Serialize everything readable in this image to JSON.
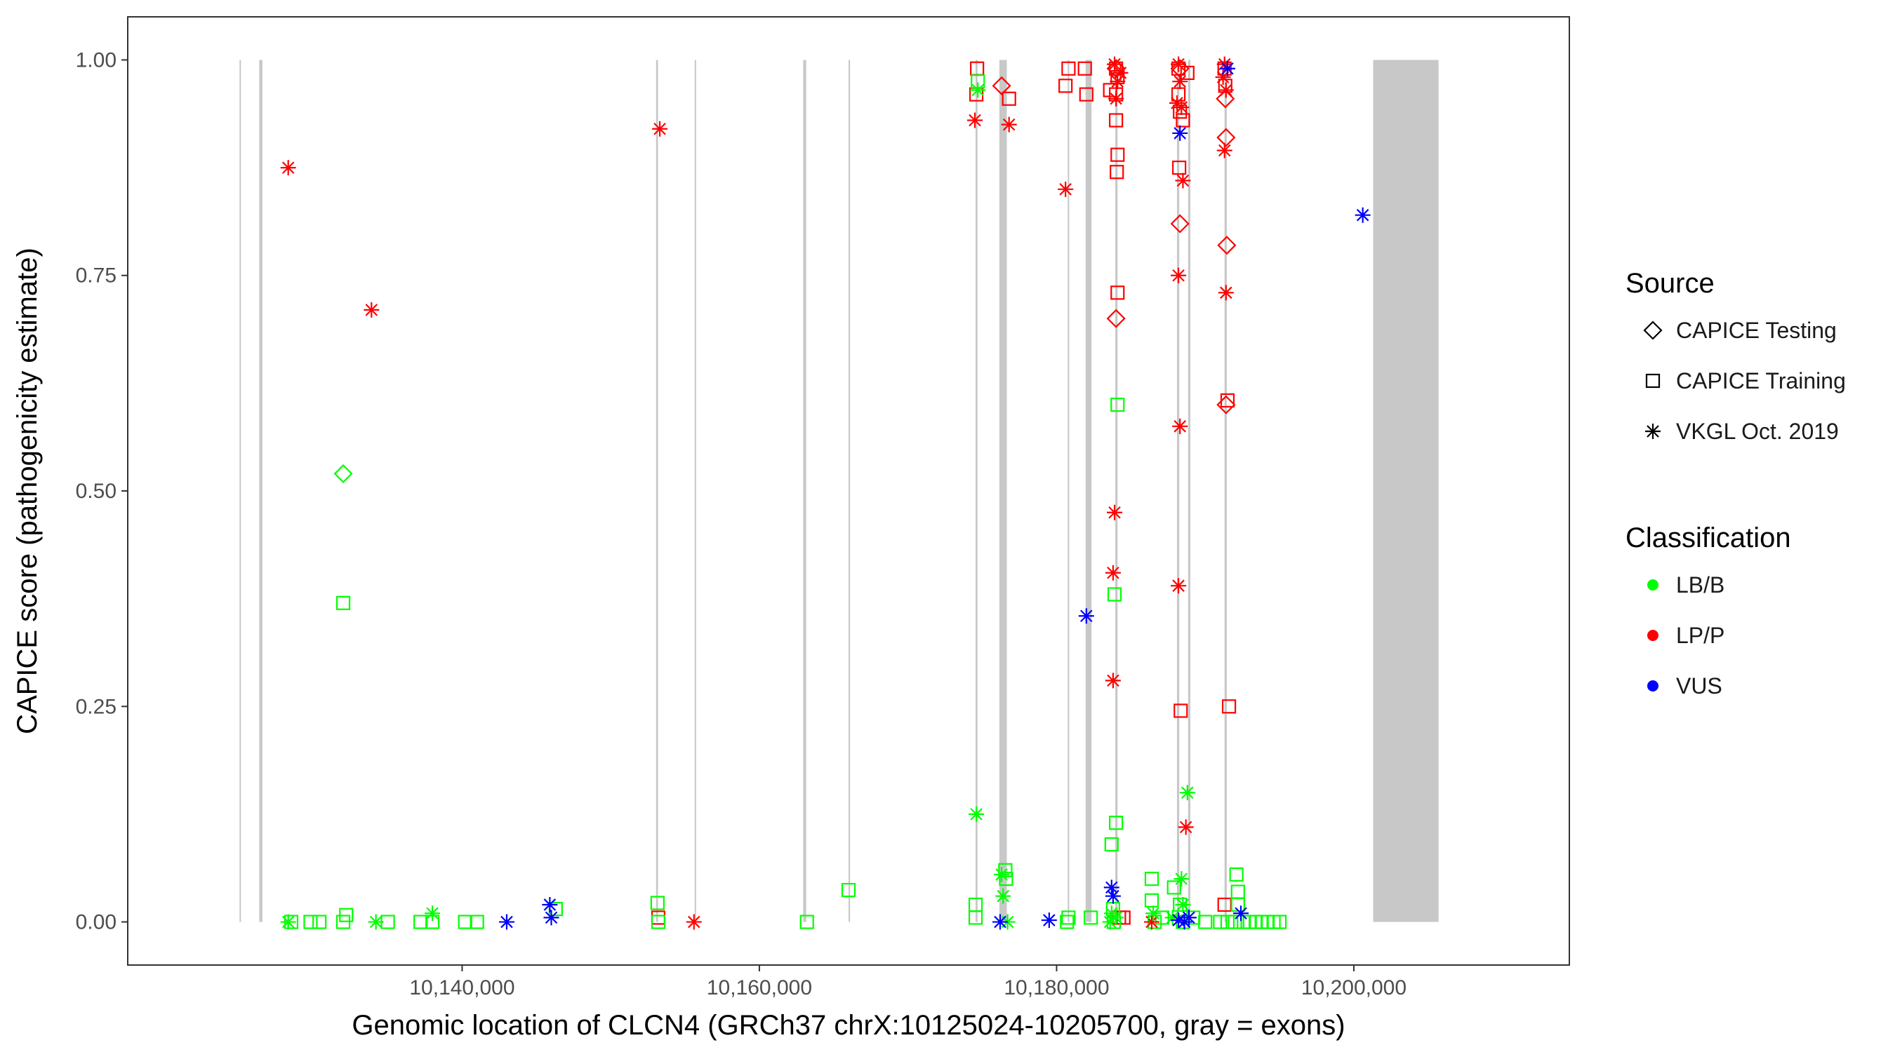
{
  "chart_data": {
    "type": "scatter",
    "xlabel": "Genomic location of CLCN4 (GRCh37 chrX:10125024-10205700, gray = exons)",
    "ylabel": "CAPICE score (pathogenicity estimate)",
    "xlim": [
      10117500,
      10214500
    ],
    "ylim": [
      -0.05,
      1.05
    ],
    "x_ticks": [
      10140000,
      10160000,
      10180000,
      10200000
    ],
    "x_tick_labels": [
      "10,140,000",
      "10,160,000",
      "10,180,000",
      "10,200,000"
    ],
    "y_ticks": [
      0,
      0.25,
      0.5,
      0.75,
      1
    ],
    "y_tick_labels": [
      "0.00",
      "0.25",
      "0.50",
      "0.75",
      "1.00"
    ],
    "grid": false,
    "legend_placement": "right",
    "exon_color": "#c8c8c8",
    "exons": [
      {
        "start": 10125024,
        "end": 10125110
      },
      {
        "start": 10126350,
        "end": 10126560
      },
      {
        "start": 10153050,
        "end": 10153180
      },
      {
        "start": 10155650,
        "end": 10155730
      },
      {
        "start": 10162950,
        "end": 10163150
      },
      {
        "start": 10166000,
        "end": 10166100
      },
      {
        "start": 10174550,
        "end": 10174680
      },
      {
        "start": 10176150,
        "end": 10176650
      },
      {
        "start": 10180750,
        "end": 10180850
      },
      {
        "start": 10181950,
        "end": 10182350
      },
      {
        "start": 10183950,
        "end": 10184100
      },
      {
        "start": 10188100,
        "end": 10188250
      },
      {
        "start": 10188850,
        "end": 10189000
      },
      {
        "start": 10191300,
        "end": 10191450
      },
      {
        "start": 10201300,
        "end": 10205700
      }
    ],
    "legend": {
      "source_title": "Source",
      "source_items": [
        {
          "label": "CAPICE Testing",
          "shape": "diamond"
        },
        {
          "label": "CAPICE Training",
          "shape": "square"
        },
        {
          "label": "VKGL Oct. 2019",
          "shape": "asterisk"
        }
      ],
      "class_title": "Classification",
      "class_items": [
        {
          "label": "LB/B",
          "color": "#00ff00"
        },
        {
          "label": "LP/P",
          "color": "#ff0000"
        },
        {
          "label": "VUS",
          "color": "#0000ff"
        }
      ]
    },
    "series": [
      {
        "source": "CAPICE Testing",
        "classification": "LP/P",
        "points": [
          [
            10176300,
            0.97
          ],
          [
            10184000,
            0.7
          ],
          [
            10188300,
            0.81
          ],
          [
            10191350,
            0.955
          ],
          [
            10191400,
            0.91
          ],
          [
            10191450,
            0.785
          ],
          [
            10191400,
            0.6
          ],
          [
            10184000,
            0.99
          ],
          [
            10188300,
            0.99
          ]
        ]
      },
      {
        "source": "CAPICE Testing",
        "classification": "LB/B",
        "points": [
          [
            10132000,
            0.52
          ]
        ]
      },
      {
        "source": "CAPICE Training",
        "classification": "LP/P",
        "points": [
          [
            10153200,
            0.005
          ],
          [
            10174650,
            0.99
          ],
          [
            10174600,
            0.96
          ],
          [
            10176800,
            0.955
          ],
          [
            10180600,
            0.97
          ],
          [
            10180800,
            0.99
          ],
          [
            10181900,
            0.99
          ],
          [
            10182000,
            0.96
          ],
          [
            10183600,
            0.965
          ],
          [
            10184000,
            0.99
          ],
          [
            10184000,
            0.96
          ],
          [
            10184000,
            0.93
          ],
          [
            10184100,
            0.89
          ],
          [
            10184050,
            0.87
          ],
          [
            10184100,
            0.73
          ],
          [
            10184100,
            0.98
          ],
          [
            10188200,
            0.99
          ],
          [
            10188200,
            0.96
          ],
          [
            10188300,
            0.94
          ],
          [
            10188250,
            0.875
          ],
          [
            10188500,
            0.93
          ],
          [
            10188800,
            0.985
          ],
          [
            10188350,
            0.245
          ],
          [
            10191300,
            0.99
          ],
          [
            10191350,
            0.97
          ],
          [
            10191500,
            0.605
          ],
          [
            10191600,
            0.25
          ],
          [
            10191300,
            0.02
          ],
          [
            10184500,
            0.005
          ],
          [
            10184200,
            0.005
          ]
        ]
      },
      {
        "source": "CAPICE Training",
        "classification": "LB/B",
        "points": [
          [
            10128500,
            0.0
          ],
          [
            10129800,
            0.0
          ],
          [
            10130400,
            0.0
          ],
          [
            10132200,
            0.008
          ],
          [
            10132000,
            0.0
          ],
          [
            10132000,
            0.37
          ],
          [
            10135000,
            0.0
          ],
          [
            10137200,
            0.0
          ],
          [
            10138000,
            0.0
          ],
          [
            10140200,
            0.0
          ],
          [
            10141000,
            0.0
          ],
          [
            10146300,
            0.015
          ],
          [
            10153150,
            0.022
          ],
          [
            10153200,
            0.0
          ],
          [
            10163200,
            0.0
          ],
          [
            10166000,
            0.037
          ],
          [
            10174700,
            0.975
          ],
          [
            10174550,
            0.02
          ],
          [
            10174550,
            0.005
          ],
          [
            10176550,
            0.06
          ],
          [
            10176600,
            0.05
          ],
          [
            10180700,
            0.0
          ],
          [
            10180800,
            0.005
          ],
          [
            10182300,
            0.005
          ],
          [
            10183700,
            0.09
          ],
          [
            10183900,
            0.38
          ],
          [
            10184000,
            0.115
          ],
          [
            10184100,
            0.6
          ],
          [
            10183800,
            0.015
          ],
          [
            10183850,
            0.0
          ],
          [
            10186400,
            0.05
          ],
          [
            10186400,
            0.025
          ],
          [
            10186600,
            0.0
          ],
          [
            10187100,
            0.005
          ],
          [
            10187900,
            0.04
          ],
          [
            10188300,
            0.02
          ],
          [
            10188500,
            0.0
          ],
          [
            10189200,
            0.005
          ],
          [
            10190000,
            0.0
          ],
          [
            10191000,
            0.0
          ],
          [
            10191500,
            0.0
          ],
          [
            10192000,
            0.0
          ],
          [
            10192100,
            0.055
          ],
          [
            10192200,
            0.035
          ],
          [
            10192200,
            0.02
          ],
          [
            10192600,
            0.0
          ],
          [
            10193000,
            0.0
          ],
          [
            10193400,
            0.0
          ],
          [
            10193800,
            0.0
          ],
          [
            10194200,
            0.0
          ],
          [
            10194600,
            0.0
          ],
          [
            10195000,
            0.0
          ]
        ]
      },
      {
        "source": "VKGL Oct. 2019",
        "classification": "LP/P",
        "points": [
          [
            10128300,
            0.875
          ],
          [
            10133900,
            0.71
          ],
          [
            10153300,
            0.92
          ],
          [
            10155600,
            0.0
          ],
          [
            10174500,
            0.93
          ],
          [
            10176800,
            0.925
          ],
          [
            10180600,
            0.85
          ],
          [
            10183900,
            0.475
          ],
          [
            10183800,
            0.405
          ],
          [
            10183800,
            0.28
          ],
          [
            10183900,
            0.995
          ],
          [
            10184100,
            0.975
          ],
          [
            10184000,
            0.955
          ],
          [
            10184300,
            0.985
          ],
          [
            10188200,
            0.995
          ],
          [
            10188300,
            0.975
          ],
          [
            10188100,
            0.95
          ],
          [
            10188400,
            0.945
          ],
          [
            10188500,
            0.86
          ],
          [
            10188200,
            0.75
          ],
          [
            10188300,
            0.575
          ],
          [
            10188200,
            0.39
          ],
          [
            10188700,
            0.11
          ],
          [
            10191300,
            0.995
          ],
          [
            10191200,
            0.98
          ],
          [
            10191400,
            0.965
          ],
          [
            10191300,
            0.895
          ],
          [
            10191400,
            0.73
          ],
          [
            10186400,
            0.0
          ]
        ]
      },
      {
        "source": "VKGL Oct. 2019",
        "classification": "LB/B",
        "points": [
          [
            10128300,
            0.0
          ],
          [
            10134200,
            0.0
          ],
          [
            10138000,
            0.01
          ],
          [
            10174600,
            0.125
          ],
          [
            10176300,
            0.055
          ],
          [
            10176400,
            0.03
          ],
          [
            10176700,
            0.0
          ],
          [
            10174700,
            0.965
          ],
          [
            10183700,
            0.01
          ],
          [
            10183600,
            0.0
          ],
          [
            10184000,
            0.005
          ],
          [
            10186500,
            0.01
          ],
          [
            10188400,
            0.05
          ],
          [
            10188500,
            0.02
          ],
          [
            10188800,
            0.15
          ],
          [
            10187800,
            0.005
          ]
        ]
      },
      {
        "source": "VKGL Oct. 2019",
        "classification": "VUS",
        "points": [
          [
            10143000,
            0.0
          ],
          [
            10145900,
            0.02
          ],
          [
            10146000,
            0.005
          ],
          [
            10176200,
            0.0
          ],
          [
            10179500,
            0.002
          ],
          [
            10182000,
            0.355
          ],
          [
            10183700,
            0.04
          ],
          [
            10183800,
            0.03
          ],
          [
            10188300,
            0.915
          ],
          [
            10188200,
            0.002
          ],
          [
            10188600,
            0.0
          ],
          [
            10188900,
            0.005
          ],
          [
            10191500,
            0.99
          ],
          [
            10192400,
            0.01
          ],
          [
            10200600,
            0.82
          ]
        ]
      }
    ]
  }
}
